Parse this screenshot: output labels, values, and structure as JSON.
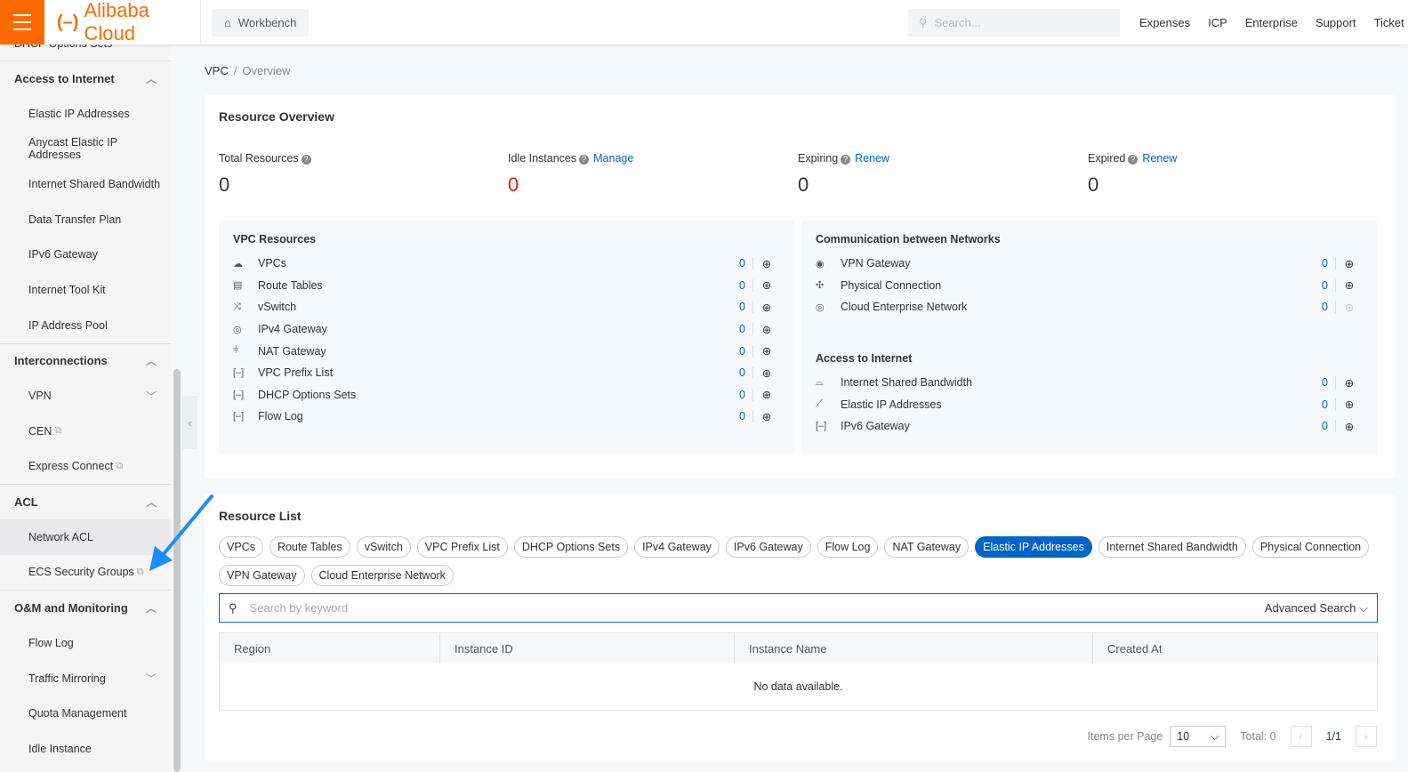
{
  "topbar": {
    "brand": "Alibaba Cloud",
    "workbench": "Workbench",
    "search_placeholder": "Search...",
    "nav": [
      "Expenses",
      "ICP",
      "Enterprise",
      "Support",
      "Ticket"
    ]
  },
  "sidebar": {
    "partial_item": "DHCP Options Sets",
    "sections": [
      {
        "title": "Access to Internet",
        "expanded": true,
        "items": [
          {
            "label": "Elastic IP Addresses"
          },
          {
            "label": "Anycast Elastic IP Addresses"
          },
          {
            "label": "Internet Shared Bandwidth"
          },
          {
            "label": "Data Transfer Plan"
          },
          {
            "label": "IPv6 Gateway"
          },
          {
            "label": "Internet Tool Kit"
          },
          {
            "label": "IP Address Pool"
          }
        ]
      },
      {
        "title": "Interconnections",
        "expanded": true,
        "items": [
          {
            "label": "VPN",
            "chevron": true
          },
          {
            "label": "CEN",
            "external": true
          },
          {
            "label": "Express Connect",
            "external": true
          }
        ]
      },
      {
        "title": "ACL",
        "expanded": true,
        "items": [
          {
            "label": "Network ACL",
            "active": true
          },
          {
            "label": "ECS Security Groups",
            "external": true
          }
        ]
      },
      {
        "title": "O&M and Monitoring",
        "expanded": true,
        "items": [
          {
            "label": "Flow Log"
          },
          {
            "label": "Traffic Mirroring",
            "chevron": true
          },
          {
            "label": "Quota Management"
          },
          {
            "label": "Idle Instance"
          }
        ]
      }
    ]
  },
  "breadcrumb": {
    "root": "VPC",
    "current": "Overview"
  },
  "overview": {
    "title": "Resource Overview",
    "stats": [
      {
        "label": "Total Resources",
        "value": "0"
      },
      {
        "label": "Idle Instances",
        "link": "Manage",
        "value": "0",
        "color": "#e02020"
      },
      {
        "label": "Expiring",
        "link": "Renew",
        "value": "0"
      },
      {
        "label": "Expired",
        "link": "Renew",
        "value": "0"
      }
    ],
    "vpc_resources": {
      "title": "VPC Resources",
      "rows": [
        {
          "name": "VPCs",
          "count": "0",
          "icon": "cloud-icon"
        },
        {
          "name": "Route Tables",
          "count": "0",
          "icon": "table-icon"
        },
        {
          "name": "vSwitch",
          "count": "0",
          "icon": "switch-icon"
        },
        {
          "name": "IPv4 Gateway",
          "count": "0",
          "icon": "globe-icon"
        },
        {
          "name": "NAT Gateway",
          "count": "0",
          "icon": "nat-icon"
        },
        {
          "name": "VPC Prefix List",
          "count": "0",
          "icon": "bracket-icon"
        },
        {
          "name": "DHCP Options Sets",
          "count": "0",
          "icon": "bracket-icon"
        },
        {
          "name": "Flow Log",
          "count": "0",
          "icon": "bracket-icon"
        }
      ]
    },
    "communication": {
      "title": "Communication between Networks",
      "rows": [
        {
          "name": "VPN Gateway",
          "count": "0",
          "icon": "vpn-icon"
        },
        {
          "name": "Physical Connection",
          "count": "0",
          "icon": "connection-icon"
        },
        {
          "name": "Cloud Enterprise Network",
          "count": "0",
          "icon": "cen-icon"
        }
      ]
    },
    "access": {
      "title": "Access to Internet",
      "rows": [
        {
          "name": "Internet Shared Bandwidth",
          "count": "0",
          "icon": "bandwidth-icon"
        },
        {
          "name": "Elastic IP Addresses",
          "count": "0",
          "icon": "eip-icon"
        },
        {
          "name": "IPv6 Gateway",
          "count": "0",
          "icon": "bracket-icon"
        }
      ]
    }
  },
  "resource_list": {
    "title": "Resource List",
    "chips": [
      "VPCs",
      "Route Tables",
      "vSwitch",
      "VPC Prefix List",
      "DHCP Options Sets",
      "IPv4 Gateway",
      "IPv6 Gateway",
      "Flow Log",
      "NAT Gateway",
      "Elastic IP Addresses",
      "Internet Shared Bandwidth",
      "Physical Connection",
      "VPN Gateway",
      "Cloud Enterprise Network"
    ],
    "active_chip": "Elastic IP Addresses",
    "search_placeholder": "Search by keyword",
    "advanced_search": "Advanced Search",
    "columns": [
      "Region",
      "Instance ID",
      "Instance Name",
      "Created At"
    ],
    "empty": "No data available.",
    "pager": {
      "items_per_page_label": "Items per Page",
      "page_size": "10",
      "total": "Total: 0",
      "current": "1",
      "pages": "/1"
    }
  },
  "colors": {
    "brand": "#ff6a00",
    "link": "#0064c8",
    "annotation_arrow": "#1a8cff"
  }
}
